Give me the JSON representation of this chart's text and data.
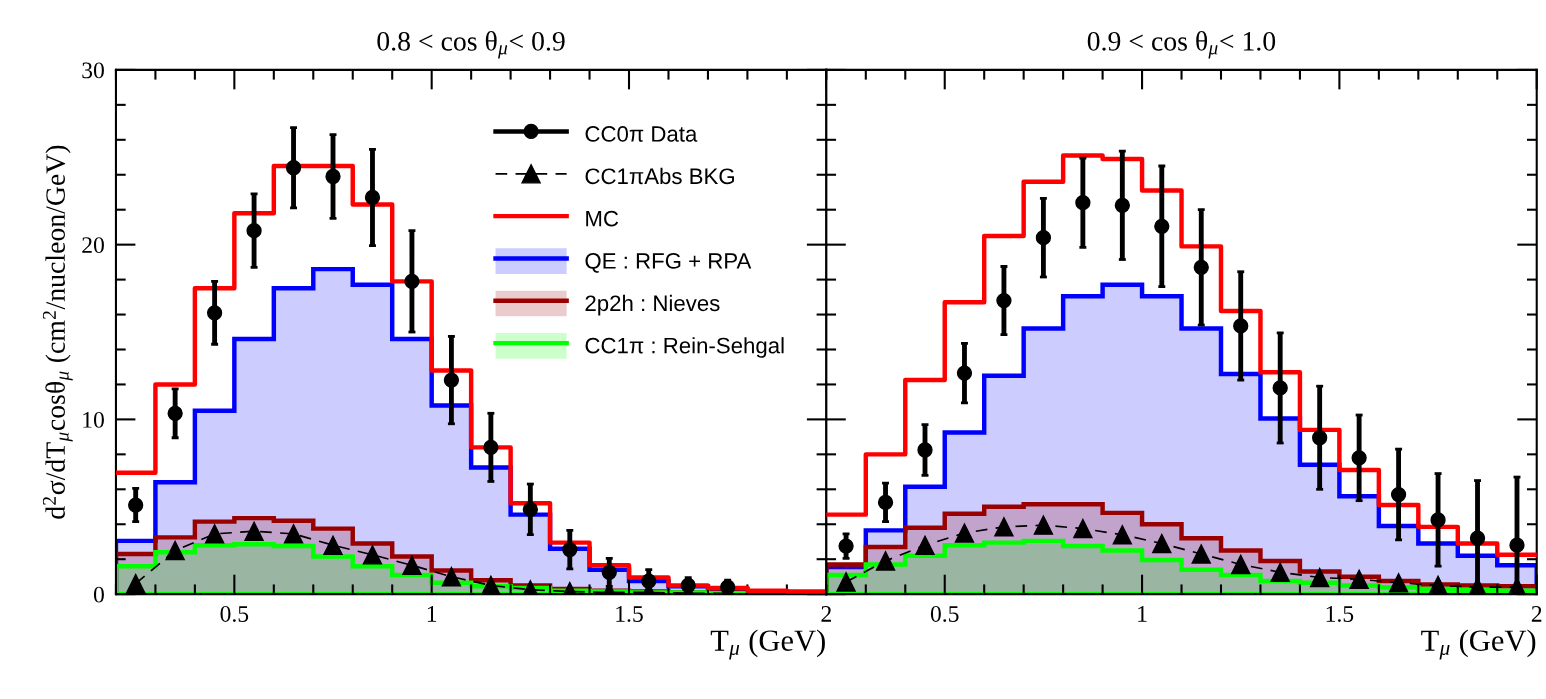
{
  "chart_data": [
    {
      "type": "step",
      "title": "0.8 < cos θ$_{μ}$< 0.9",
      "xlabel": "T$_{μ}$ (GeV)",
      "ylabel": "d$^{2}$σ/dT$_{μ}$cosθ$_{μ}$ (cm$^{2}$/nucleon/GeV)",
      "xlim": [
        0.2,
        2.0
      ],
      "ylim": [
        0,
        30
      ],
      "xticks": [
        0.5,
        1,
        1.5,
        2
      ],
      "yticks": [
        0,
        10,
        20,
        30
      ],
      "grid": false,
      "legend": "top right",
      "series": [
        {
          "name": "CC0π Data",
          "type": "scatter",
          "color": "#000000",
          "marker": "circle",
          "x": [
            0.25,
            0.35,
            0.45,
            0.55,
            0.65,
            0.75,
            0.85,
            0.95,
            1.05,
            1.15,
            1.25,
            1.35,
            1.45,
            1.55,
            1.65,
            1.75
          ],
          "values": [
            5.1,
            10.35,
            16.1,
            20.8,
            24.4,
            23.9,
            22.7,
            17.9,
            12.25,
            8.4,
            4.85,
            2.55,
            1.25,
            0.75,
            0.5,
            0.4
          ],
          "errors": [
            0.95,
            1.4,
            1.8,
            2.1,
            2.3,
            2.4,
            2.75,
            2.9,
            2.5,
            1.95,
            1.45,
            1.1,
            0.8,
            0.65,
            0.45,
            0.4
          ]
        },
        {
          "name": "CC1πAbs BKG",
          "type": "line",
          "color": "#000000",
          "marker": "triangle",
          "line_style": "dashed",
          "x": [
            0.25,
            0.35,
            0.45,
            0.55,
            0.65,
            0.75,
            0.85,
            0.95,
            1.05,
            1.15,
            1.25,
            1.35,
            1.45,
            1.55,
            1.65,
            1.75
          ],
          "values": [
            0.6,
            2.5,
            3.45,
            3.6,
            3.45,
            2.8,
            2.25,
            1.65,
            1.0,
            0.5,
            0.25,
            0.15,
            0.1,
            0.1,
            0.05,
            0.05
          ]
        },
        {
          "name": "MC",
          "color": "#ff0000",
          "x": [
            0.2,
            0.3,
            0.4,
            0.5,
            0.6,
            0.7,
            0.8,
            0.9,
            1.0,
            1.1,
            1.2,
            1.3,
            1.4,
            1.5,
            1.6,
            1.7,
            1.8,
            1.9,
            2.0
          ],
          "values": [
            6.95,
            12.0,
            17.5,
            21.8,
            24.5,
            24.5,
            22.3,
            17.9,
            12.8,
            8.4,
            5.2,
            2.95,
            1.65,
            0.95,
            0.5,
            0.35,
            0.2,
            0.15,
            0.15
          ]
        },
        {
          "name": "QE : RFG + RPA",
          "type": "area",
          "color": "#0000ff",
          "x": [
            0.2,
            0.3,
            0.4,
            0.5,
            0.6,
            0.7,
            0.8,
            0.9,
            1.0,
            1.1,
            1.2,
            1.3,
            1.4,
            1.5,
            1.6,
            1.7,
            1.8,
            1.9,
            2.0
          ],
          "values": [
            3.05,
            6.4,
            10.5,
            14.6,
            17.5,
            18.6,
            17.7,
            14.6,
            10.8,
            7.25,
            4.55,
            2.6,
            1.4,
            0.75,
            0.45,
            0.3,
            0.15,
            0.1,
            0.1
          ]
        },
        {
          "name": "2p2h : Nieves",
          "type": "area",
          "color": "#990000",
          "x": [
            0.2,
            0.3,
            0.4,
            0.5,
            0.6,
            0.7,
            0.8,
            0.9,
            1.0,
            1.1,
            1.2,
            1.3,
            1.4,
            1.5,
            1.6,
            1.7,
            1.8,
            1.9,
            2.0
          ],
          "values": [
            2.3,
            3.25,
            4.15,
            4.35,
            4.2,
            3.75,
            2.9,
            2.15,
            1.35,
            0.8,
            0.5,
            0.3,
            0.2,
            0.15,
            0.1,
            0.1,
            0.05,
            0.05,
            0.05
          ]
        },
        {
          "name": "CC1π : Rein-Sehgal",
          "type": "area",
          "color": "#00ff00",
          "x": [
            0.2,
            0.3,
            0.4,
            0.5,
            0.6,
            0.7,
            0.8,
            0.9,
            1.0,
            1.1,
            1.2,
            1.3,
            1.4,
            1.5,
            1.6,
            1.7,
            1.8,
            1.9,
            2.0
          ],
          "values": [
            1.6,
            2.4,
            2.8,
            2.85,
            2.75,
            2.15,
            1.6,
            1.1,
            0.65,
            0.45,
            0.35,
            0.2,
            0.15,
            0.1,
            0.1,
            0.05,
            0.05,
            0.05,
            0.05
          ]
        }
      ]
    },
    {
      "type": "step",
      "title": "0.9 < cos θ$_{μ}$< 1.0",
      "xlabel": "T$_{μ}$ (GeV)",
      "xlim": [
        0.2,
        2.0
      ],
      "ylim": [
        0,
        30
      ],
      "xticks": [
        0.5,
        1,
        1.5,
        2
      ],
      "yticks": [
        0,
        10,
        20,
        30
      ],
      "grid": false,
      "tick_labels": "x",
      "series": [
        {
          "type": "scatter",
          "color": "#000000",
          "marker": "circle",
          "x": [
            0.25,
            0.35,
            0.45,
            0.55,
            0.65,
            0.75,
            0.85,
            0.95,
            1.05,
            1.15,
            1.25,
            1.35,
            1.45,
            1.55,
            1.65,
            1.75,
            1.85,
            1.95
          ],
          "values": [
            2.75,
            5.25,
            8.25,
            12.65,
            16.8,
            20.4,
            22.4,
            22.25,
            21.05,
            18.7,
            15.35,
            11.8,
            8.95,
            7.8,
            5.7,
            4.25,
            3.2,
            2.8
          ],
          "errors": [
            0.7,
            1.1,
            1.45,
            1.7,
            1.95,
            2.25,
            2.55,
            3.1,
            3.45,
            3.3,
            3.1,
            3.15,
            2.95,
            2.45,
            2.6,
            2.65,
            [
              0,
              6.5
            ],
            [
              0,
              6.7
            ]
          ]
        },
        {
          "type": "line",
          "color": "#000000",
          "marker": "triangle",
          "line_style": "dashed",
          "x": [
            0.25,
            0.35,
            0.45,
            0.55,
            0.65,
            0.75,
            0.85,
            0.95,
            1.05,
            1.15,
            1.25,
            1.35,
            1.45,
            1.55,
            1.65,
            1.75,
            1.85,
            1.95
          ],
          "values": [
            0.7,
            1.9,
            2.8,
            3.5,
            3.85,
            3.95,
            3.75,
            3.4,
            2.9,
            2.3,
            1.7,
            1.25,
            0.95,
            0.85,
            0.65,
            0.5,
            0.4,
            0.4
          ]
        },
        {
          "color": "#ff0000",
          "x": [
            0.2,
            0.3,
            0.4,
            0.5,
            0.6,
            0.7,
            0.8,
            0.9,
            1.0,
            1.1,
            1.2,
            1.3,
            1.4,
            1.5,
            1.6,
            1.7,
            1.8,
            1.9,
            2.0
          ],
          "values": [
            4.55,
            8.0,
            12.25,
            16.7,
            20.5,
            23.6,
            25.1,
            24.9,
            23.1,
            19.9,
            16.2,
            12.7,
            9.4,
            7.1,
            5.1,
            3.85,
            2.9,
            2.25,
            2.25
          ]
        },
        {
          "type": "area",
          "color": "#0000ff",
          "x": [
            0.2,
            0.3,
            0.4,
            0.5,
            0.6,
            0.7,
            0.8,
            0.9,
            1.0,
            1.1,
            1.2,
            1.3,
            1.4,
            1.5,
            1.6,
            1.7,
            1.8,
            1.9,
            2.0
          ],
          "values": [
            1.55,
            3.65,
            6.15,
            9.25,
            12.5,
            15.2,
            17.05,
            17.7,
            17.05,
            15.2,
            12.6,
            10.05,
            7.4,
            5.6,
            3.9,
            2.9,
            2.2,
            1.65,
            1.65
          ]
        },
        {
          "type": "area",
          "color": "#990000",
          "x": [
            0.2,
            0.3,
            0.4,
            0.5,
            0.6,
            0.7,
            0.8,
            0.9,
            1.0,
            1.1,
            1.2,
            1.3,
            1.4,
            1.5,
            1.6,
            1.7,
            1.8,
            1.9,
            2.0
          ],
          "values": [
            1.7,
            2.7,
            3.8,
            4.6,
            5.0,
            5.15,
            5.15,
            4.65,
            4.0,
            3.2,
            2.5,
            1.9,
            1.3,
            1.0,
            0.75,
            0.55,
            0.5,
            0.45,
            0.45
          ]
        },
        {
          "type": "area",
          "color": "#00ff00",
          "x": [
            0.2,
            0.3,
            0.4,
            0.5,
            0.6,
            0.7,
            0.8,
            0.9,
            1.0,
            1.1,
            1.2,
            1.3,
            1.4,
            1.5,
            1.6,
            1.7,
            1.8,
            1.9,
            2.0
          ],
          "values": [
            1.1,
            1.7,
            2.2,
            2.8,
            2.95,
            3.05,
            2.75,
            2.5,
            1.95,
            1.4,
            1.1,
            0.75,
            0.65,
            0.5,
            0.4,
            0.3,
            0.25,
            0.2,
            0.2
          ]
        }
      ]
    }
  ]
}
